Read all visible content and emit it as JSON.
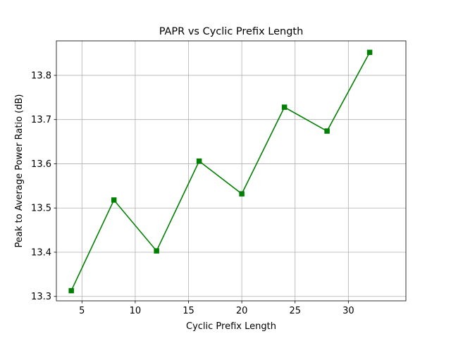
{
  "chart_data": {
    "type": "line",
    "title": "PAPR vs Cyclic Prefix Length",
    "xlabel": "Cyclic Prefix Length",
    "ylabel": "Peak to Average Power Ratio (dB)",
    "x": [
      4,
      8,
      12,
      16,
      20,
      24,
      28,
      32
    ],
    "series": [
      {
        "values": [
          13.313,
          13.518,
          13.403,
          13.606,
          13.532,
          13.728,
          13.674,
          13.852
        ],
        "color": "#008000",
        "marker": "square"
      }
    ],
    "xlim": [
      2.6,
      35.4
    ],
    "ylim": [
      13.29,
      13.878
    ],
    "xticks": [
      5,
      10,
      15,
      20,
      25,
      30
    ],
    "yticks": [
      13.3,
      13.4,
      13.5,
      13.6,
      13.7,
      13.8
    ],
    "grid": true,
    "legend": "none"
  }
}
